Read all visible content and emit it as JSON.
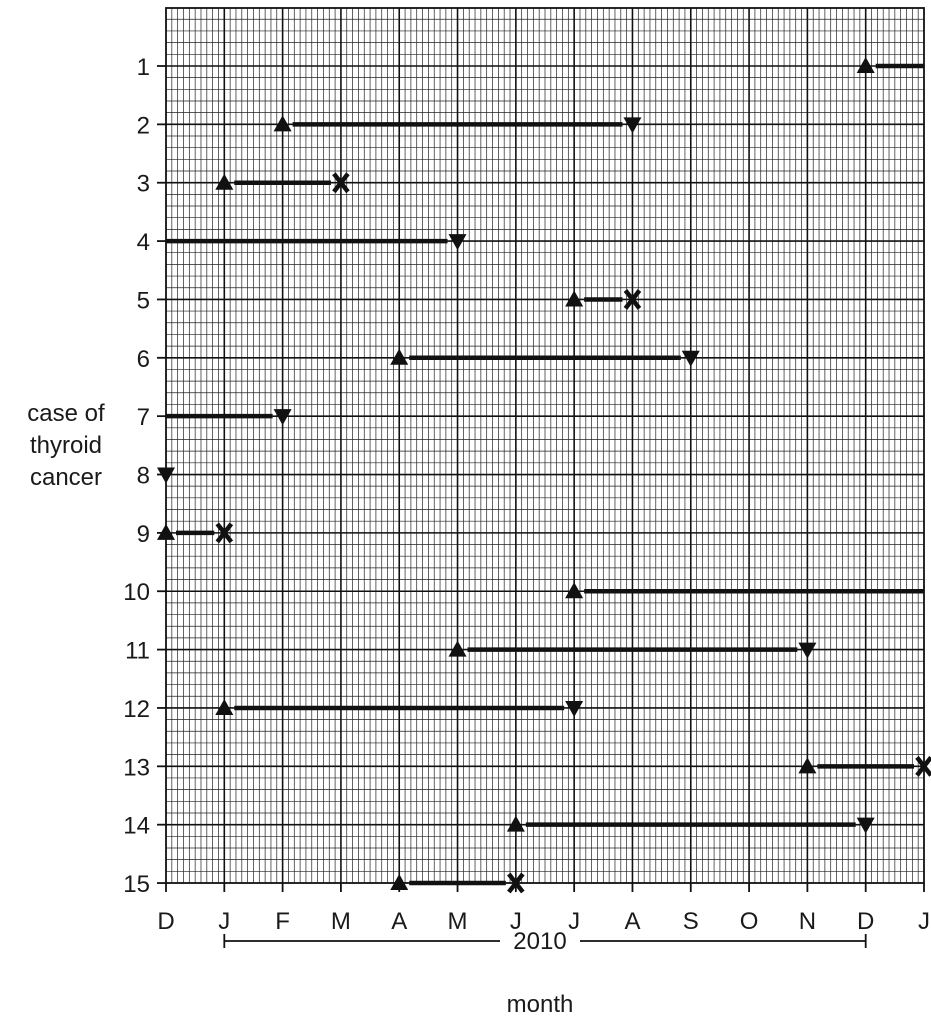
{
  "chart_data": {
    "type": "timeline",
    "title": "",
    "xlabel": "month",
    "ylabel": [
      "case of",
      "thyroid",
      "cancer"
    ],
    "year_label": "2010",
    "x_tick_labels": [
      "D",
      "J",
      "F",
      "M",
      "A",
      "M",
      "J",
      "J",
      "A",
      "S",
      "O",
      "N",
      "D",
      "J"
    ],
    "y_tick_labels": [
      "1",
      "2",
      "3",
      "4",
      "5",
      "6",
      "7",
      "8",
      "9",
      "10",
      "11",
      "12",
      "13",
      "14",
      "15"
    ],
    "xlim": [
      0,
      13
    ],
    "grid": true,
    "marker_meaning": {
      "up-triangle": "start",
      "down-triangle": "end",
      "x": "end"
    },
    "cases": [
      {
        "case": 1,
        "start": 12,
        "end": 13,
        "start_marker": "up-triangle",
        "end_marker": "none"
      },
      {
        "case": 2,
        "start": 2,
        "end": 8,
        "start_marker": "up-triangle",
        "end_marker": "down-triangle"
      },
      {
        "case": 3,
        "start": 1,
        "end": 3,
        "start_marker": "up-triangle",
        "end_marker": "x"
      },
      {
        "case": 4,
        "start": 0,
        "end": 5,
        "start_marker": "none",
        "end_marker": "down-triangle"
      },
      {
        "case": 5,
        "start": 7,
        "end": 8,
        "start_marker": "up-triangle",
        "end_marker": "x"
      },
      {
        "case": 6,
        "start": 4,
        "end": 9,
        "start_marker": "up-triangle",
        "end_marker": "down-triangle"
      },
      {
        "case": 7,
        "start": 0,
        "end": 2,
        "start_marker": "none",
        "end_marker": "down-triangle"
      },
      {
        "case": 8,
        "start": 0,
        "end": 0,
        "start_marker": "none",
        "end_marker": "down-triangle"
      },
      {
        "case": 9,
        "start": 0,
        "end": 1,
        "start_marker": "up-triangle",
        "end_marker": "x"
      },
      {
        "case": 10,
        "start": 7,
        "end": 13,
        "start_marker": "up-triangle",
        "end_marker": "none"
      },
      {
        "case": 11,
        "start": 5,
        "end": 11,
        "start_marker": "up-triangle",
        "end_marker": "down-triangle"
      },
      {
        "case": 12,
        "start": 1,
        "end": 7,
        "start_marker": "up-triangle",
        "end_marker": "down-triangle"
      },
      {
        "case": 13,
        "start": 11,
        "end": 13,
        "start_marker": "up-triangle",
        "end_marker": "x"
      },
      {
        "case": 14,
        "start": 6,
        "end": 12,
        "start_marker": "up-triangle",
        "end_marker": "down-triangle"
      },
      {
        "case": 15,
        "start": 4,
        "end": 6,
        "start_marker": "up-triangle",
        "end_marker": "x"
      }
    ]
  }
}
